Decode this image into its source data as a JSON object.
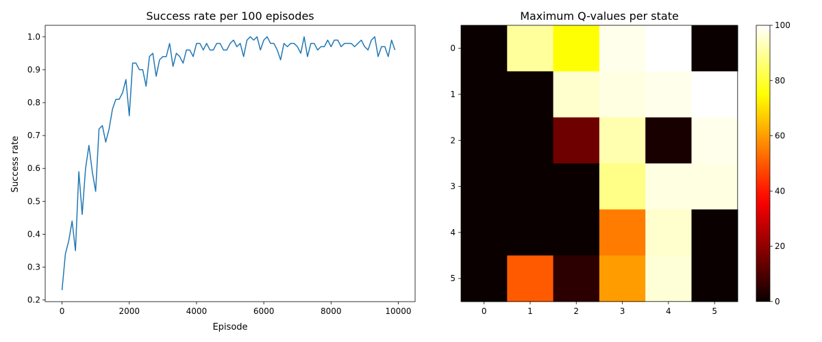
{
  "chart_data": [
    {
      "type": "line",
      "title": "Success rate per 100 episodes",
      "xlabel": "Episode",
      "ylabel": "Success rate",
      "xlim": [
        -500,
        10500
      ],
      "ylim": [
        0.195,
        1.035
      ],
      "xticks": [
        0,
        2000,
        4000,
        6000,
        8000,
        10000
      ],
      "xtick_labels": [
        "0",
        "2000",
        "4000",
        "6000",
        "8000",
        "10000"
      ],
      "yticks": [
        0.2,
        0.3,
        0.4,
        0.5,
        0.6,
        0.7,
        0.8,
        0.9,
        1.0
      ],
      "ytick_labels": [
        "0.2",
        "0.3",
        "0.4",
        "0.5",
        "0.6",
        "0.7",
        "0.8",
        "0.9",
        "1.0"
      ],
      "grid": false,
      "color": "#1f77b4",
      "x_start": 0,
      "x_step": 100,
      "values": [
        0.23,
        0.34,
        0.38,
        0.44,
        0.35,
        0.59,
        0.46,
        0.6,
        0.67,
        0.59,
        0.53,
        0.72,
        0.73,
        0.68,
        0.72,
        0.78,
        0.81,
        0.81,
        0.83,
        0.87,
        0.76,
        0.92,
        0.92,
        0.9,
        0.9,
        0.85,
        0.94,
        0.95,
        0.88,
        0.93,
        0.94,
        0.94,
        0.98,
        0.91,
        0.95,
        0.94,
        0.92,
        0.96,
        0.96,
        0.94,
        0.98,
        0.98,
        0.96,
        0.98,
        0.96,
        0.96,
        0.98,
        0.98,
        0.96,
        0.96,
        0.98,
        0.99,
        0.97,
        0.98,
        0.94,
        0.99,
        1.0,
        0.99,
        1.0,
        0.96,
        0.99,
        1.0,
        0.98,
        0.98,
        0.96,
        0.93,
        0.98,
        0.97,
        0.98,
        0.98,
        0.97,
        0.95,
        1.0,
        0.94,
        0.98,
        0.98,
        0.96,
        0.97,
        0.97,
        0.99,
        0.97,
        0.99,
        0.99,
        0.97,
        0.98,
        0.98,
        0.98,
        0.97,
        0.98,
        0.99,
        0.97,
        0.96,
        0.99,
        1.0,
        0.94,
        0.97,
        0.97,
        0.94,
        0.99,
        0.96
      ]
    },
    {
      "type": "heatmap",
      "title": "Maximum Q-values per state",
      "rows": [
        "0",
        "1",
        "2",
        "3",
        "4",
        "5"
      ],
      "cols": [
        "0",
        "1",
        "2",
        "3",
        "4",
        "5"
      ],
      "colormap": "hot",
      "vmin": 0,
      "vmax": 100,
      "colorbar_ticks": [
        0,
        20,
        40,
        60,
        80,
        100
      ],
      "colorbar_tick_labels": [
        "0",
        "20",
        "40",
        "60",
        "80",
        "100"
      ],
      "values": [
        [
          0,
          90,
          75,
          98,
          100,
          0
        ],
        [
          0,
          0,
          95,
          97,
          98,
          100
        ],
        [
          0,
          0,
          15,
          92,
          2,
          98
        ],
        [
          0,
          0,
          0,
          88,
          97,
          97
        ],
        [
          0,
          0,
          0,
          55,
          95,
          0
        ],
        [
          0,
          50,
          5,
          60,
          96,
          0
        ]
      ]
    }
  ]
}
